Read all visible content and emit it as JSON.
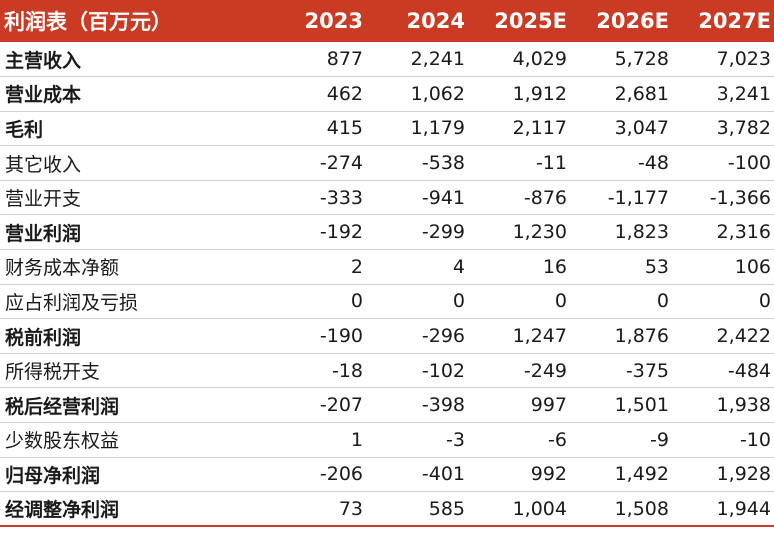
{
  "table": {
    "header": {
      "label": "利润表（百万元）",
      "years": [
        "2023",
        "2024",
        "2025E",
        "2026E",
        "2027E"
      ]
    },
    "rows": [
      {
        "label": "主营收入",
        "bold": true,
        "values": [
          "877",
          "2,241",
          "4,029",
          "5,728",
          "7,023"
        ]
      },
      {
        "label": "营业成本",
        "bold": true,
        "values": [
          "462",
          "1,062",
          "1,912",
          "2,681",
          "3,241"
        ]
      },
      {
        "label": "毛利",
        "bold": true,
        "values": [
          "415",
          "1,179",
          "2,117",
          "3,047",
          "3,782"
        ]
      },
      {
        "label": "其它收入",
        "bold": false,
        "values": [
          "-274",
          "-538",
          "-11",
          "-48",
          "-100"
        ]
      },
      {
        "label": "营业开支",
        "bold": false,
        "values": [
          "-333",
          "-941",
          "-876",
          "-1,177",
          "-1,366"
        ]
      },
      {
        "label": "营业利润",
        "bold": true,
        "values": [
          "-192",
          "-299",
          "1,230",
          "1,823",
          "2,316"
        ]
      },
      {
        "label": "财务成本净额",
        "bold": false,
        "values": [
          "2",
          "4",
          "16",
          "53",
          "106"
        ]
      },
      {
        "label": "应占利润及亏损",
        "bold": false,
        "values": [
          "0",
          "0",
          "0",
          "0",
          "0"
        ]
      },
      {
        "label": "税前利润",
        "bold": true,
        "values": [
          "-190",
          "-296",
          "1,247",
          "1,876",
          "2,422"
        ]
      },
      {
        "label": "所得税开支",
        "bold": false,
        "values": [
          "-18",
          "-102",
          "-249",
          "-375",
          "-484"
        ]
      },
      {
        "label": "税后经营利润",
        "bold": true,
        "values": [
          "-207",
          "-398",
          "997",
          "1,501",
          "1,938"
        ]
      },
      {
        "label": "少数股东权益",
        "bold": false,
        "values": [
          "1",
          "-3",
          "-6",
          "-9",
          "-10"
        ]
      },
      {
        "label": "归母净利润",
        "bold": true,
        "values": [
          "-206",
          "-401",
          "992",
          "1,492",
          "1,928"
        ]
      },
      {
        "label": "经调整净利润",
        "bold": true,
        "values": [
          "73",
          "585",
          "1,004",
          "1,508",
          "1,944"
        ]
      }
    ]
  },
  "colors": {
    "header_background": "#cb3a22",
    "header_text": "#ffffff",
    "row_divider": "#cfcfcf"
  }
}
